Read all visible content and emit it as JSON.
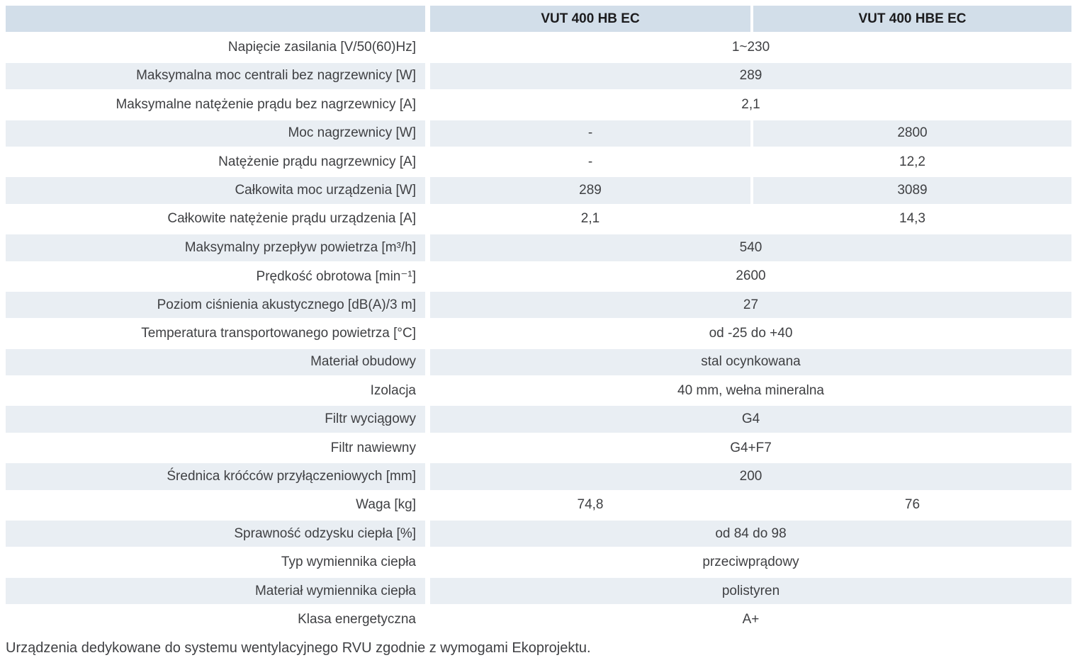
{
  "colors": {
    "header_bg": "#d2dee9",
    "row_alt_bg": "#e9eef3",
    "text": "#3f4043",
    "header_text": "#1c1c1e"
  },
  "table": {
    "columns": [
      "VUT 400 HB EC",
      "VUT 400 HBE EC"
    ],
    "rows": [
      {
        "label": "Napięcie zasilania [V/50(60)Hz]",
        "merged": "1~230"
      },
      {
        "label": "Maksymalna moc centrali bez nagrzewnicy [W]",
        "merged": "289"
      },
      {
        "label": "Maksymalne natężenie prądu bez nagrzewnicy [A]",
        "merged": "2,1"
      },
      {
        "label": "Moc nagrzewnicy [W]",
        "col1": "-",
        "col2": "2800"
      },
      {
        "label": "Natężenie prądu nagrzewnicy [A]",
        "col1": "-",
        "col2": "12,2"
      },
      {
        "label": "Całkowita moc urządzenia [W]",
        "col1": "289",
        "col2": "3089"
      },
      {
        "label": "Całkowite natężenie prądu urządzenia [A]",
        "col1": "2,1",
        "col2": "14,3"
      },
      {
        "label": "Maksymalny przepływ powietrza [m³/h]",
        "merged": "540"
      },
      {
        "label": "Prędkość obrotowa [min⁻¹]",
        "merged": "2600"
      },
      {
        "label": "Poziom ciśnienia akustycznego  [dB(A)/3 m]",
        "merged": "27"
      },
      {
        "label": "Temperatura transportowanego powietrza [°C]",
        "merged": "od -25 do +40"
      },
      {
        "label": "Materiał obudowy",
        "merged": "stal ocynkowana"
      },
      {
        "label": "Izolacja",
        "merged": "40 mm, wełna mineralna"
      },
      {
        "label": "Filtr wyciągowy",
        "merged": "G4"
      },
      {
        "label": "Filtr nawiewny",
        "merged": "G4+F7"
      },
      {
        "label": "Średnica króćców przyłączeniowych [mm]",
        "merged": "200"
      },
      {
        "label": "Waga [kg]",
        "col1": "74,8",
        "col2": "76"
      },
      {
        "label": "Sprawność odzysku ciepła [%]",
        "merged": "od 84 do 98"
      },
      {
        "label": "Typ wymiennika ciepła",
        "merged": "przeciwprądowy"
      },
      {
        "label": "Materiał wymiennika ciepła",
        "merged": "polistyren"
      },
      {
        "label": "Klasa energetyczna",
        "merged": "A+"
      }
    ],
    "footnote": "Urządzenia dedykowane do systemu wentylacyjnego RVU zgodnie z wymogami Ekoprojektu."
  }
}
